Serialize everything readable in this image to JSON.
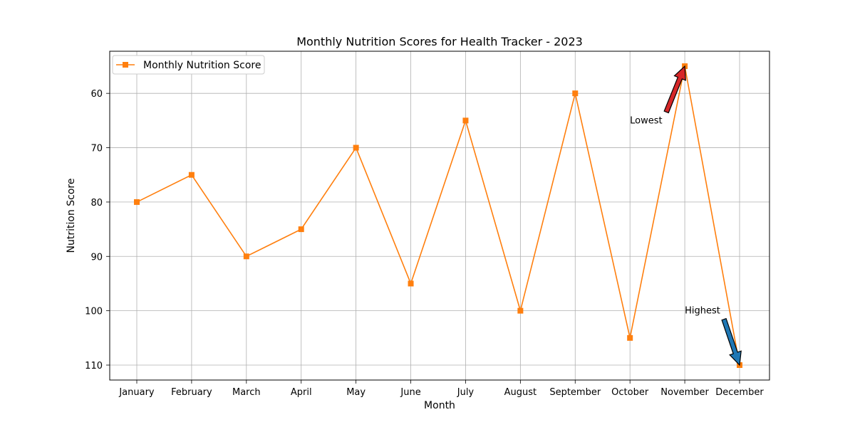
{
  "chart_data": {
    "type": "line",
    "title": "Monthly Nutrition Scores for Health Tracker - 2023",
    "xlabel": "Month",
    "ylabel": "Nutrition Score",
    "categories": [
      "January",
      "February",
      "March",
      "April",
      "May",
      "June",
      "July",
      "August",
      "September",
      "October",
      "November",
      "December"
    ],
    "series": [
      {
        "name": "Monthly Nutrition Score",
        "values": [
          80,
          75,
          90,
          85,
          70,
          95,
          65,
          100,
          60,
          105,
          55,
          110
        ],
        "color": "#ff7f0e",
        "marker": "square"
      }
    ],
    "y_inverted": true,
    "ylim": [
      52.25,
      112.75
    ],
    "yticks": [
      60,
      70,
      80,
      90,
      100,
      110
    ],
    "grid": true,
    "legend_position": "top-left",
    "annotations": [
      {
        "label": "Lowest",
        "target_category": "November",
        "target_value": 55,
        "text_category": "October",
        "text_value": 65,
        "arrow_color": "#d62728"
      },
      {
        "label": "Highest",
        "target_category": "December",
        "target_value": 110,
        "text_category": "November",
        "text_value": 100,
        "arrow_color": "#1f77b4"
      }
    ]
  }
}
